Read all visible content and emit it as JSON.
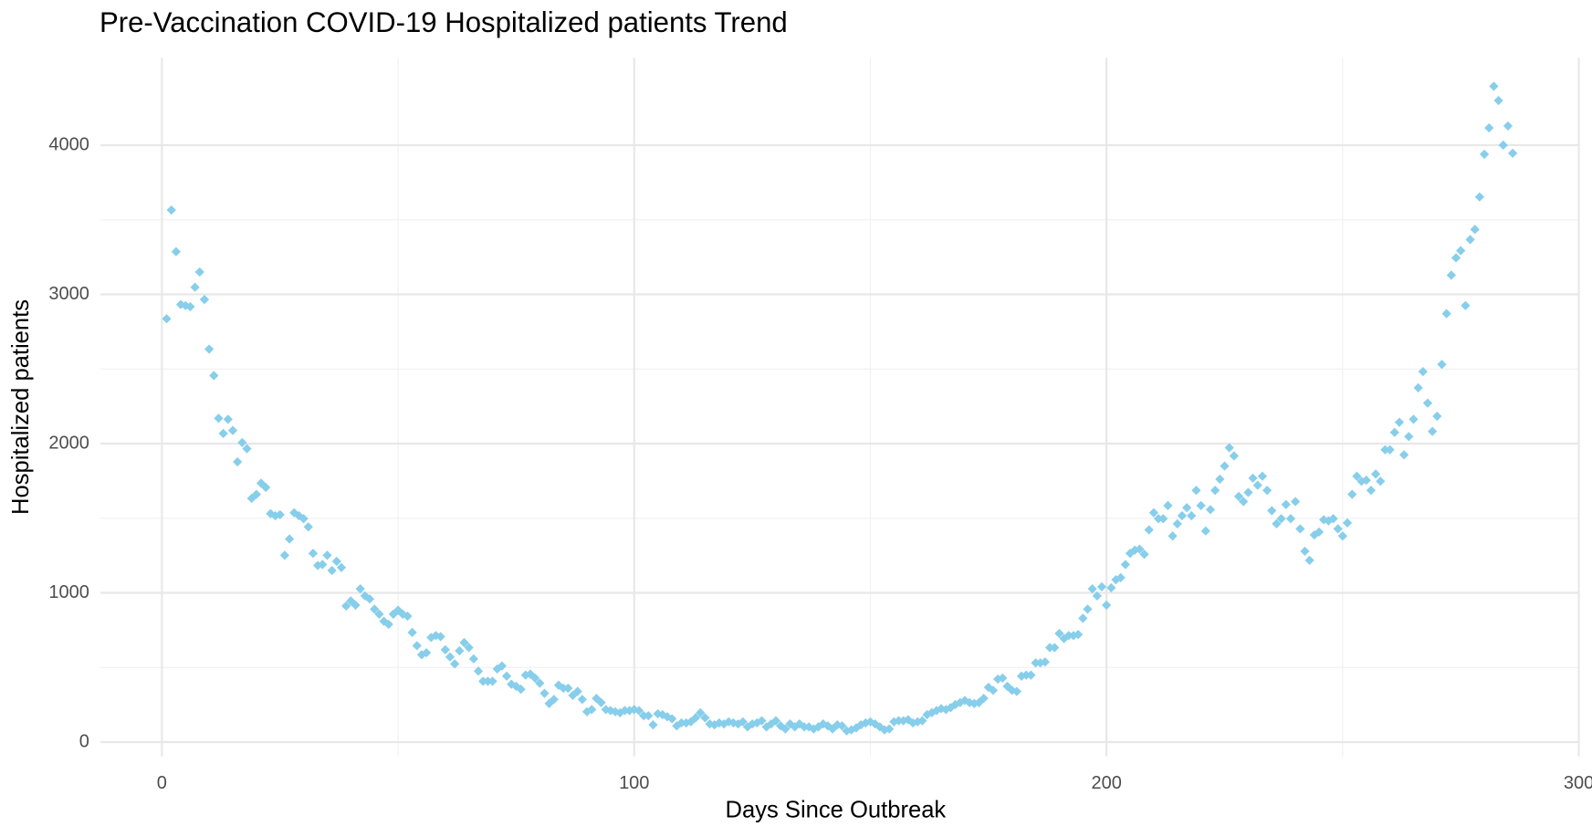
{
  "chart_data": {
    "type": "scatter",
    "title": "Pre-Vaccination COVID-19 Hospitalized patients Trend",
    "x_label": "Days Since Outbreak",
    "y_label": "Hospitalized patients",
    "color": "#87ceeb",
    "marker": "diamond",
    "grid": true,
    "xlim": [
      -13,
      300
    ],
    "ylim": [
      -95,
      4585
    ],
    "xticks": [
      0,
      100,
      200,
      300
    ],
    "yticks": [
      0,
      1000,
      2000,
      3000,
      4000
    ],
    "x_minor_ticks": [
      50,
      150,
      250
    ],
    "y_minor_ticks": [
      500,
      1500,
      2500,
      3500
    ],
    "x": [
      1,
      2,
      3,
      4,
      5,
      6,
      7,
      8,
      9,
      10,
      11,
      12,
      13,
      14,
      15,
      16,
      17,
      18,
      19,
      20,
      21,
      22,
      23,
      24,
      25,
      26,
      27,
      28,
      29,
      30,
      31,
      32,
      33,
      34,
      35,
      36,
      37,
      38,
      39,
      40,
      41,
      42,
      43,
      44,
      45,
      46,
      47,
      48,
      49,
      50,
      51,
      52,
      53,
      54,
      55,
      56,
      57,
      58,
      59,
      60,
      61,
      62,
      63,
      64,
      65,
      66,
      67,
      68,
      69,
      70,
      71,
      72,
      73,
      74,
      75,
      76,
      77,
      78,
      79,
      80,
      81,
      82,
      83,
      84,
      85,
      86,
      87,
      88,
      89,
      90,
      91,
      92,
      93,
      94,
      95,
      96,
      97,
      98,
      99,
      100,
      101,
      102,
      103,
      104,
      105,
      106,
      107,
      108,
      109,
      110,
      111,
      112,
      113,
      114,
      115,
      116,
      117,
      118,
      119,
      120,
      121,
      122,
      123,
      124,
      125,
      126,
      127,
      128,
      129,
      130,
      131,
      132,
      133,
      134,
      135,
      136,
      137,
      138,
      139,
      140,
      141,
      142,
      143,
      144,
      145,
      146,
      147,
      148,
      149,
      150,
      151,
      152,
      153,
      154,
      155,
      156,
      157,
      158,
      159,
      160,
      161,
      162,
      163,
      164,
      165,
      166,
      167,
      168,
      169,
      170,
      171,
      172,
      173,
      174,
      175,
      176,
      177,
      178,
      179,
      180,
      181,
      182,
      183,
      184,
      185,
      186,
      187,
      188,
      189,
      190,
      191,
      192,
      193,
      194,
      195,
      196,
      197,
      198,
      199,
      200,
      201,
      202,
      203,
      204,
      205,
      206,
      207,
      208,
      209,
      210,
      211,
      212,
      213,
      214,
      215,
      216,
      217,
      218,
      219,
      220,
      221,
      222,
      223,
      224,
      225,
      226,
      227,
      228,
      229,
      230,
      231,
      232,
      233,
      234,
      235,
      236,
      237,
      238,
      239,
      240,
      241,
      242,
      243,
      244,
      245,
      246,
      247,
      248,
      249,
      250,
      251,
      252,
      253,
      254,
      255,
      256,
      257,
      258,
      259,
      260,
      261,
      262,
      263,
      264,
      265,
      266,
      267,
      268,
      269,
      270,
      271,
      272,
      273,
      274,
      275,
      276,
      277,
      278,
      279,
      280,
      281,
      282,
      283,
      284,
      285,
      286
    ],
    "values": [
      2837,
      3565,
      3286,
      2932,
      2925,
      2918,
      3048,
      3150,
      2966,
      2633,
      2456,
      2170,
      2068,
      2163,
      2088,
      1878,
      2007,
      1966,
      1633,
      1660,
      1735,
      1707,
      1531,
      1517,
      1524,
      1252,
      1361,
      1537,
      1517,
      1497,
      1442,
      1265,
      1184,
      1190,
      1252,
      1150,
      1211,
      1170,
      912,
      946,
      918,
      1027,
      980,
      959,
      891,
      857,
      810,
      789,
      857,
      884,
      857,
      844,
      735,
      646,
      585,
      599,
      701,
      714,
      707,
      619,
      571,
      524,
      612,
      667,
      633,
      558,
      476,
      408,
      408,
      408,
      490,
      510,
      442,
      388,
      374,
      354,
      449,
      456,
      429,
      395,
      327,
      259,
      286,
      381,
      361,
      361,
      313,
      340,
      286,
      204,
      218,
      293,
      265,
      218,
      211,
      204,
      197,
      211,
      211,
      218,
      211,
      177,
      177,
      116,
      190,
      184,
      170,
      156,
      109,
      129,
      129,
      136,
      163,
      197,
      163,
      122,
      116,
      129,
      122,
      136,
      129,
      122,
      136,
      102,
      122,
      129,
      143,
      102,
      122,
      143,
      109,
      88,
      122,
      102,
      122,
      102,
      102,
      88,
      102,
      122,
      109,
      88,
      116,
      109,
      75,
      82,
      95,
      116,
      129,
      136,
      122,
      102,
      82,
      88,
      136,
      143,
      143,
      150,
      129,
      136,
      143,
      184,
      197,
      211,
      224,
      218,
      231,
      252,
      265,
      279,
      265,
      259,
      265,
      293,
      367,
      347,
      422,
      429,
      374,
      347,
      340,
      442,
      449,
      449,
      531,
      531,
      537,
      633,
      633,
      728,
      694,
      714,
      714,
      721,
      830,
      891,
      1027,
      980,
      1041,
      918,
      1034,
      1088,
      1102,
      1190,
      1265,
      1286,
      1293,
      1259,
      1422,
      1537,
      1497,
      1497,
      1585,
      1381,
      1463,
      1517,
      1571,
      1517,
      1687,
      1585,
      1415,
      1558,
      1687,
      1762,
      1850,
      1973,
      1918,
      1646,
      1612,
      1673,
      1769,
      1721,
      1782,
      1687,
      1551,
      1463,
      1497,
      1592,
      1497,
      1612,
      1429,
      1279,
      1218,
      1388,
      1408,
      1490,
      1483,
      1497,
      1429,
      1381,
      1469,
      1660,
      1782,
      1748,
      1755,
      1687,
      1796,
      1748,
      1959,
      1959,
      2075,
      2143,
      1925,
      2048,
      2163,
      2374,
      2483,
      2272,
      2082,
      2184,
      2531,
      2871,
      3129,
      3245,
      3293,
      2925,
      3367,
      3435,
      3653,
      3939,
      4116,
      4395,
      4299,
      4000,
      4129,
      3946
    ]
  }
}
